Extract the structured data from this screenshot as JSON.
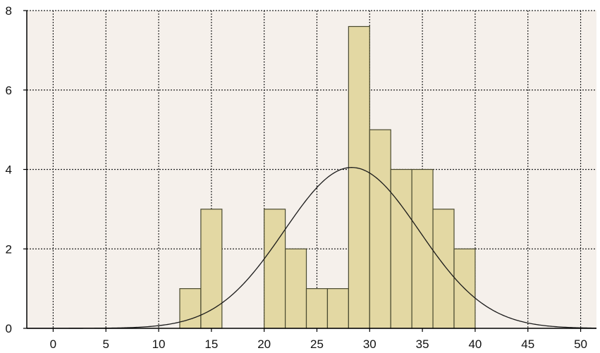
{
  "chart_data": {
    "type": "bar",
    "title": "",
    "xlabel": "",
    "ylabel": "",
    "xlim": [
      -2.5,
      51.5
    ],
    "ylim": [
      0,
      8
    ],
    "x_ticks": [
      0,
      5,
      10,
      15,
      20,
      25,
      30,
      35,
      40,
      45,
      50
    ],
    "y_ticks": [
      0,
      2,
      4,
      6,
      8
    ],
    "grid": true,
    "legend": "none",
    "bin_width": 2,
    "bins": [
      {
        "start": 12,
        "end": 14,
        "count": 1
      },
      {
        "start": 14,
        "end": 16,
        "count": 3
      },
      {
        "start": 20,
        "end": 22,
        "count": 3
      },
      {
        "start": 22,
        "end": 24,
        "count": 2
      },
      {
        "start": 24,
        "end": 26,
        "count": 1
      },
      {
        "start": 26,
        "end": 28,
        "count": 1
      },
      {
        "start": 28,
        "end": 30,
        "count": 7.6
      },
      {
        "start": 30,
        "end": 32,
        "count": 5
      },
      {
        "start": 32,
        "end": 34,
        "count": 4
      },
      {
        "start": 34,
        "end": 36,
        "count": 4
      },
      {
        "start": 36,
        "end": 38,
        "count": 3
      },
      {
        "start": 38,
        "end": 40,
        "count": 2
      }
    ],
    "normal_curve": {
      "mean": 28.3,
      "sd": 6.4,
      "peak": 4.05
    },
    "colors": {
      "plot_background": "#f5f0eb",
      "bar_fill": "#e3d8a3",
      "bar_stroke": "#4a4a30",
      "curve": "#1a1a1a",
      "grid": "#222222"
    }
  }
}
